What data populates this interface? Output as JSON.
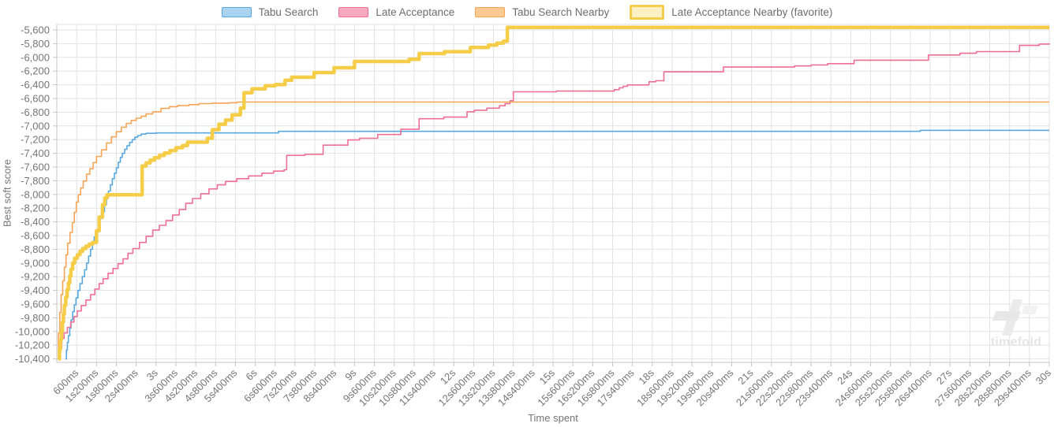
{
  "legend": {
    "items": [
      {
        "label": "Tabu Search",
        "fill": "#a9d3f1",
        "border": "#57a9e0",
        "thick": false
      },
      {
        "label": "Late Acceptance",
        "fill": "#f8a9c2",
        "border": "#ef6e96",
        "thick": false
      },
      {
        "label": "Tabu Search Nearby",
        "fill": "#fbca92",
        "border": "#f7a457",
        "thick": false
      },
      {
        "label": "Late Acceptance Nearby (favorite)",
        "fill": "#fdf1c4",
        "border": "#f5cd49",
        "thick": true
      }
    ]
  },
  "watermark": {
    "text": "timefold"
  },
  "chart_data": {
    "type": "line",
    "step": "after",
    "title": "",
    "xlabel": "Time spent",
    "ylabel": "Best soft score",
    "x_unit": "seconds",
    "xlim": [
      0,
      30
    ],
    "ylim": [
      -10450,
      -5520
    ],
    "grid": true,
    "legend_position": "top",
    "x_tick_interval_s": 0.6,
    "y_tick_start": -5600,
    "y_tick_interval": -200,
    "x_tick_labels": [
      "600ms",
      "1s200ms",
      "1s800ms",
      "2s400ms",
      "3s",
      "3s600ms",
      "4s200ms",
      "4s800ms",
      "5s400ms",
      "6s",
      "6s600ms",
      "7s200ms",
      "7s800ms",
      "8s400ms",
      "9s",
      "9s600ms",
      "10s200ms",
      "10s800ms",
      "11s400ms",
      "12s",
      "12s600ms",
      "13s200ms",
      "13s800ms",
      "14s400ms",
      "15s",
      "15s600ms",
      "16s200ms",
      "16s800ms",
      "17s400ms",
      "18s",
      "18s600ms",
      "19s200ms",
      "19s800ms",
      "20s400ms",
      "21s",
      "21s600ms",
      "22s200ms",
      "22s800ms",
      "23s400ms",
      "24s",
      "24s600ms",
      "25s200ms",
      "25s800ms",
      "26s400ms",
      "27s",
      "27s600ms",
      "28s200ms",
      "28s800ms",
      "29s400ms",
      "30s"
    ],
    "y_tick_labels": [
      "-5,600",
      "-5,800",
      "-6,000",
      "-6,200",
      "-6,400",
      "-6,600",
      "-6,800",
      "-7,000",
      "-7,200",
      "-7,400",
      "-7,600",
      "-7,800",
      "-8,000",
      "-8,200",
      "-8,400",
      "-8,600",
      "-8,800",
      "-9,000",
      "-9,200",
      "-9,400",
      "-9,600",
      "-9,800",
      "-10,000",
      "-10,200",
      "-10,400"
    ],
    "series": [
      {
        "name": "Tabu Search",
        "color": "#57a9e0",
        "width": 1.6,
        "points": [
          [
            0.26,
            -10400
          ],
          [
            0.29,
            -10270
          ],
          [
            0.32,
            -10160
          ],
          [
            0.35,
            -10060
          ],
          [
            0.39,
            -9950
          ],
          [
            0.43,
            -9830
          ],
          [
            0.48,
            -9710
          ],
          [
            0.53,
            -9610
          ],
          [
            0.58,
            -9510
          ],
          [
            0.64,
            -9400
          ],
          [
            0.7,
            -9300
          ],
          [
            0.77,
            -9200
          ],
          [
            0.84,
            -9100
          ],
          [
            0.9,
            -9000
          ],
          [
            0.96,
            -8900
          ],
          [
            1.02,
            -8800
          ],
          [
            1.08,
            -8710
          ],
          [
            1.13,
            -8620
          ],
          [
            1.19,
            -8530
          ],
          [
            1.25,
            -8440
          ],
          [
            1.31,
            -8350
          ],
          [
            1.38,
            -8250
          ],
          [
            1.44,
            -8150
          ],
          [
            1.5,
            -8050
          ],
          [
            1.56,
            -7950
          ],
          [
            1.62,
            -7860
          ],
          [
            1.68,
            -7770
          ],
          [
            1.74,
            -7690
          ],
          [
            1.8,
            -7610
          ],
          [
            1.86,
            -7530
          ],
          [
            1.92,
            -7460
          ],
          [
            1.98,
            -7400
          ],
          [
            2.05,
            -7340
          ],
          [
            2.12,
            -7290
          ],
          [
            2.2,
            -7240
          ],
          [
            2.28,
            -7200
          ],
          [
            2.36,
            -7165
          ],
          [
            2.45,
            -7140
          ],
          [
            2.55,
            -7120
          ],
          [
            2.7,
            -7108
          ],
          [
            3.0,
            -7102
          ],
          [
            6.7,
            -7080
          ],
          [
            26.1,
            -7064
          ],
          [
            30,
            -7064
          ]
        ]
      },
      {
        "name": "Late Acceptance",
        "color": "#ef6e96",
        "width": 1.6,
        "points": [
          [
            0.07,
            -10400
          ],
          [
            0.11,
            -10240
          ],
          [
            0.15,
            -10100
          ],
          [
            0.22,
            -10020
          ],
          [
            0.32,
            -9940
          ],
          [
            0.42,
            -9860
          ],
          [
            0.52,
            -9780
          ],
          [
            0.62,
            -9700
          ],
          [
            0.74,
            -9620
          ],
          [
            0.88,
            -9540
          ],
          [
            1.02,
            -9460
          ],
          [
            1.15,
            -9380
          ],
          [
            1.28,
            -9300
          ],
          [
            1.4,
            -9230
          ],
          [
            1.55,
            -9150
          ],
          [
            1.7,
            -9080
          ],
          [
            1.85,
            -9010
          ],
          [
            2.0,
            -8940
          ],
          [
            2.15,
            -8860
          ],
          [
            2.3,
            -8790
          ],
          [
            2.5,
            -8700
          ],
          [
            2.7,
            -8610
          ],
          [
            2.9,
            -8520
          ],
          [
            3.1,
            -8450
          ],
          [
            3.3,
            -8380
          ],
          [
            3.5,
            -8300
          ],
          [
            3.7,
            -8220
          ],
          [
            3.9,
            -8130
          ],
          [
            4.1,
            -8060
          ],
          [
            4.35,
            -7990
          ],
          [
            4.6,
            -7920
          ],
          [
            4.85,
            -7860
          ],
          [
            5.1,
            -7810
          ],
          [
            5.44,
            -7770
          ],
          [
            5.8,
            -7730
          ],
          [
            6.2,
            -7690
          ],
          [
            6.55,
            -7660
          ],
          [
            6.87,
            -7640
          ],
          [
            6.95,
            -7430
          ],
          [
            7.5,
            -7415
          ],
          [
            8.05,
            -7280
          ],
          [
            8.8,
            -7205
          ],
          [
            9.15,
            -7180
          ],
          [
            9.7,
            -7125
          ],
          [
            10.4,
            -7050
          ],
          [
            10.95,
            -6895
          ],
          [
            11.7,
            -6872
          ],
          [
            12.4,
            -6795
          ],
          [
            12.62,
            -6772
          ],
          [
            13.0,
            -6742
          ],
          [
            13.38,
            -6706
          ],
          [
            13.55,
            -6676
          ],
          [
            13.7,
            -6632
          ],
          [
            13.8,
            -6502
          ],
          [
            15.1,
            -6492
          ],
          [
            16.85,
            -6472
          ],
          [
            17.0,
            -6445
          ],
          [
            17.12,
            -6422
          ],
          [
            17.25,
            -6402
          ],
          [
            17.9,
            -6357
          ],
          [
            18.1,
            -6342
          ],
          [
            18.35,
            -6212
          ],
          [
            20.15,
            -6142
          ],
          [
            22.3,
            -6126
          ],
          [
            22.8,
            -6112
          ],
          [
            23.3,
            -6092
          ],
          [
            24.1,
            -6042
          ],
          [
            26.35,
            -5966
          ],
          [
            27.3,
            -5941
          ],
          [
            27.8,
            -5916
          ],
          [
            29.1,
            -5826
          ],
          [
            29.7,
            -5806
          ],
          [
            30,
            -5796
          ]
        ]
      },
      {
        "name": "Tabu Search Nearby",
        "color": "#f7a457",
        "width": 1.6,
        "points": [
          [
            0.02,
            -10400
          ],
          [
            0.05,
            -10020
          ],
          [
            0.09,
            -9720
          ],
          [
            0.13,
            -9460
          ],
          [
            0.18,
            -9260
          ],
          [
            0.23,
            -9060
          ],
          [
            0.28,
            -8880
          ],
          [
            0.33,
            -8710
          ],
          [
            0.4,
            -8555
          ],
          [
            0.47,
            -8410
          ],
          [
            0.53,
            -8260
          ],
          [
            0.59,
            -8110
          ],
          [
            0.65,
            -8005
          ],
          [
            0.72,
            -7905
          ],
          [
            0.8,
            -7805
          ],
          [
            0.9,
            -7705
          ],
          [
            1.0,
            -7625
          ],
          [
            1.1,
            -7535
          ],
          [
            1.2,
            -7445
          ],
          [
            1.35,
            -7350
          ],
          [
            1.5,
            -7250
          ],
          [
            1.65,
            -7160
          ],
          [
            1.8,
            -7085
          ],
          [
            1.95,
            -7020
          ],
          [
            2.1,
            -6965
          ],
          [
            2.25,
            -6920
          ],
          [
            2.4,
            -6888
          ],
          [
            2.55,
            -6860
          ],
          [
            2.7,
            -6825
          ],
          [
            2.9,
            -6795
          ],
          [
            3.15,
            -6745
          ],
          [
            3.4,
            -6720
          ],
          [
            3.65,
            -6705
          ],
          [
            4.0,
            -6690
          ],
          [
            4.3,
            -6675
          ],
          [
            4.7,
            -6668
          ],
          [
            5.2,
            -6662
          ],
          [
            5.45,
            -6652
          ],
          [
            30,
            -6652
          ]
        ]
      },
      {
        "name": "Late Acceptance Nearby (favorite)",
        "color": "#f5cd49",
        "width": 4.5,
        "points": [
          [
            0.05,
            -10400
          ],
          [
            0.08,
            -10260
          ],
          [
            0.11,
            -10120
          ],
          [
            0.14,
            -9990
          ],
          [
            0.17,
            -9860
          ],
          [
            0.2,
            -9740
          ],
          [
            0.23,
            -9620
          ],
          [
            0.27,
            -9500
          ],
          [
            0.31,
            -9390
          ],
          [
            0.35,
            -9290
          ],
          [
            0.39,
            -9190
          ],
          [
            0.43,
            -9090
          ],
          [
            0.48,
            -9000
          ],
          [
            0.54,
            -8930
          ],
          [
            0.62,
            -8880
          ],
          [
            0.7,
            -8830
          ],
          [
            0.78,
            -8790
          ],
          [
            0.88,
            -8755
          ],
          [
            0.98,
            -8725
          ],
          [
            1.08,
            -8700
          ],
          [
            1.2,
            -8530
          ],
          [
            1.28,
            -8330
          ],
          [
            1.38,
            -8150
          ],
          [
            1.45,
            -8050
          ],
          [
            1.52,
            -8005
          ],
          [
            2.58,
            -7585
          ],
          [
            2.7,
            -7540
          ],
          [
            2.82,
            -7500
          ],
          [
            2.95,
            -7465
          ],
          [
            3.1,
            -7430
          ],
          [
            3.25,
            -7395
          ],
          [
            3.42,
            -7360
          ],
          [
            3.6,
            -7318
          ],
          [
            3.8,
            -7288
          ],
          [
            3.95,
            -7238
          ],
          [
            4.55,
            -7180
          ],
          [
            4.7,
            -7055
          ],
          [
            4.9,
            -6975
          ],
          [
            5.1,
            -6915
          ],
          [
            5.3,
            -6838
          ],
          [
            5.55,
            -6742
          ],
          [
            5.66,
            -6518
          ],
          [
            5.9,
            -6460
          ],
          [
            6.3,
            -6415
          ],
          [
            6.6,
            -6398
          ],
          [
            6.9,
            -6335
          ],
          [
            7.1,
            -6290
          ],
          [
            7.78,
            -6222
          ],
          [
            8.38,
            -6152
          ],
          [
            9.0,
            -6060
          ],
          [
            10.65,
            -6028
          ],
          [
            10.95,
            -5945
          ],
          [
            11.72,
            -5918
          ],
          [
            12.5,
            -5855
          ],
          [
            13.05,
            -5822
          ],
          [
            13.3,
            -5792
          ],
          [
            13.5,
            -5765
          ],
          [
            13.62,
            -5562
          ],
          [
            30,
            -5562
          ]
        ]
      }
    ]
  }
}
